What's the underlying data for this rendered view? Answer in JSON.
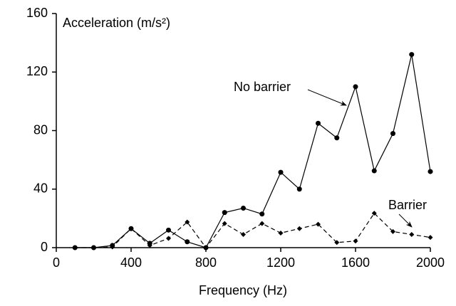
{
  "chart_data": {
    "type": "line",
    "y_label": "Acceleration (m/s²)",
    "x_label": "Frequency (Hz)",
    "x": [
      100,
      200,
      300,
      400,
      500,
      600,
      700,
      800,
      900,
      1000,
      1100,
      1200,
      1300,
      1400,
      1500,
      1600,
      1700,
      1800,
      1900,
      2000
    ],
    "series": [
      {
        "name": "No barrier",
        "color": "#000000",
        "dash": false,
        "marker": "circle",
        "values": [
          0,
          0,
          1.5,
          13,
          3,
          12,
          4,
          0,
          24,
          27,
          23,
          51.5,
          40,
          85,
          75,
          110,
          52.5,
          78,
          132,
          52
        ]
      },
      {
        "name": "Barrier",
        "color": "#000000",
        "dash": true,
        "marker": "diamond",
        "values": [
          0,
          0,
          0.5,
          13,
          1.5,
          6.3,
          17.5,
          0,
          16.5,
          9,
          16.5,
          10,
          13,
          16,
          3.5,
          4.5,
          23.5,
          11,
          9,
          7
        ]
      }
    ],
    "xlim": [
      0,
      2000
    ],
    "xticks": [
      0,
      400,
      800,
      1200,
      1600,
      2000
    ],
    "ylim": [
      0,
      160
    ],
    "yticks": [
      0,
      40,
      80,
      120,
      160
    ],
    "grid": false
  }
}
